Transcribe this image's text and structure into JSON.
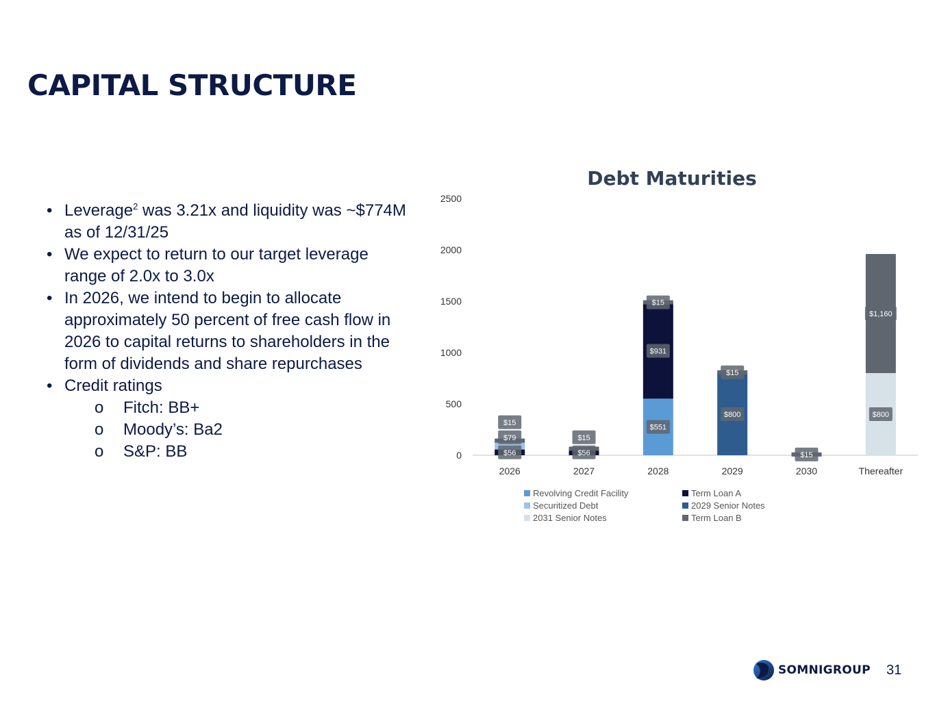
{
  "slide": {
    "title": "CAPITAL STRUCTURE",
    "bullets": [
      {
        "pre": "Leverage",
        "sup": "2",
        "post": "was 3.21x and liquidity was ~$774M as of 12/31/25"
      },
      {
        "text": "We expect to return to our target leverage range of 2.0x to 3.0x"
      },
      {
        "text": "In 2026, we intend to begin to allocate approximately 50 percent of free cash flow in 2026 to capital returns to shareholders in the form of dividends and share repurchases"
      },
      {
        "text": "Credit ratings"
      }
    ],
    "ratings": [
      "Fitch: BB+",
      "Moody’s: Ba2",
      "S&P: BB"
    ],
    "bullet_glyph": "•",
    "sub_glyph": "o",
    "brand": "SOMNIGROUP",
    "page_number": "31"
  },
  "chart_data": {
    "type": "bar",
    "stacked": true,
    "title": "Debt Maturities",
    "xlabel": "",
    "ylabel": "",
    "categories": [
      "2026",
      "2027",
      "2028",
      "2029",
      "2030",
      "Thereafter"
    ],
    "ylim": [
      0,
      2500
    ],
    "yticks": [
      0,
      500,
      1000,
      1500,
      2000,
      2500
    ],
    "grid": false,
    "legend_position": "bottom",
    "series": [
      {
        "name": "Revolving Credit Facility",
        "color": "#5b9bd5",
        "values": [
          0,
          0,
          551,
          0,
          0,
          0
        ],
        "labels": [
          "",
          "",
          "$551",
          "",
          "",
          ""
        ]
      },
      {
        "name": "Term Loan A",
        "color": "#0c1239",
        "values": [
          56,
          56,
          931,
          0,
          0,
          0
        ],
        "labels": [
          "$56",
          "$56",
          "$931",
          "",
          "",
          ""
        ]
      },
      {
        "name": "Securitized Debt",
        "color": "#9dc3e6",
        "values": [
          79,
          0,
          0,
          0,
          0,
          0
        ],
        "labels": [
          "$79",
          "",
          "",
          "",
          "",
          ""
        ]
      },
      {
        "name": "2029 Senior Notes",
        "color": "#2e5c8e",
        "values": [
          0,
          0,
          0,
          800,
          0,
          0
        ],
        "labels": [
          "",
          "",
          "",
          "$800",
          "",
          ""
        ]
      },
      {
        "name": "2031 Senior Notes",
        "color": "#d6e1e8",
        "values": [
          0,
          0,
          0,
          0,
          0,
          800
        ],
        "labels": [
          "",
          "",
          "",
          "",
          "",
          "$800"
        ]
      },
      {
        "name": "Term Loan B",
        "color": "#5f6670",
        "values": [
          15,
          15,
          15,
          15,
          15,
          1160
        ],
        "labels": [
          "$15",
          "$15",
          "$15",
          "$15",
          "$15",
          "$1,160"
        ]
      }
    ]
  }
}
